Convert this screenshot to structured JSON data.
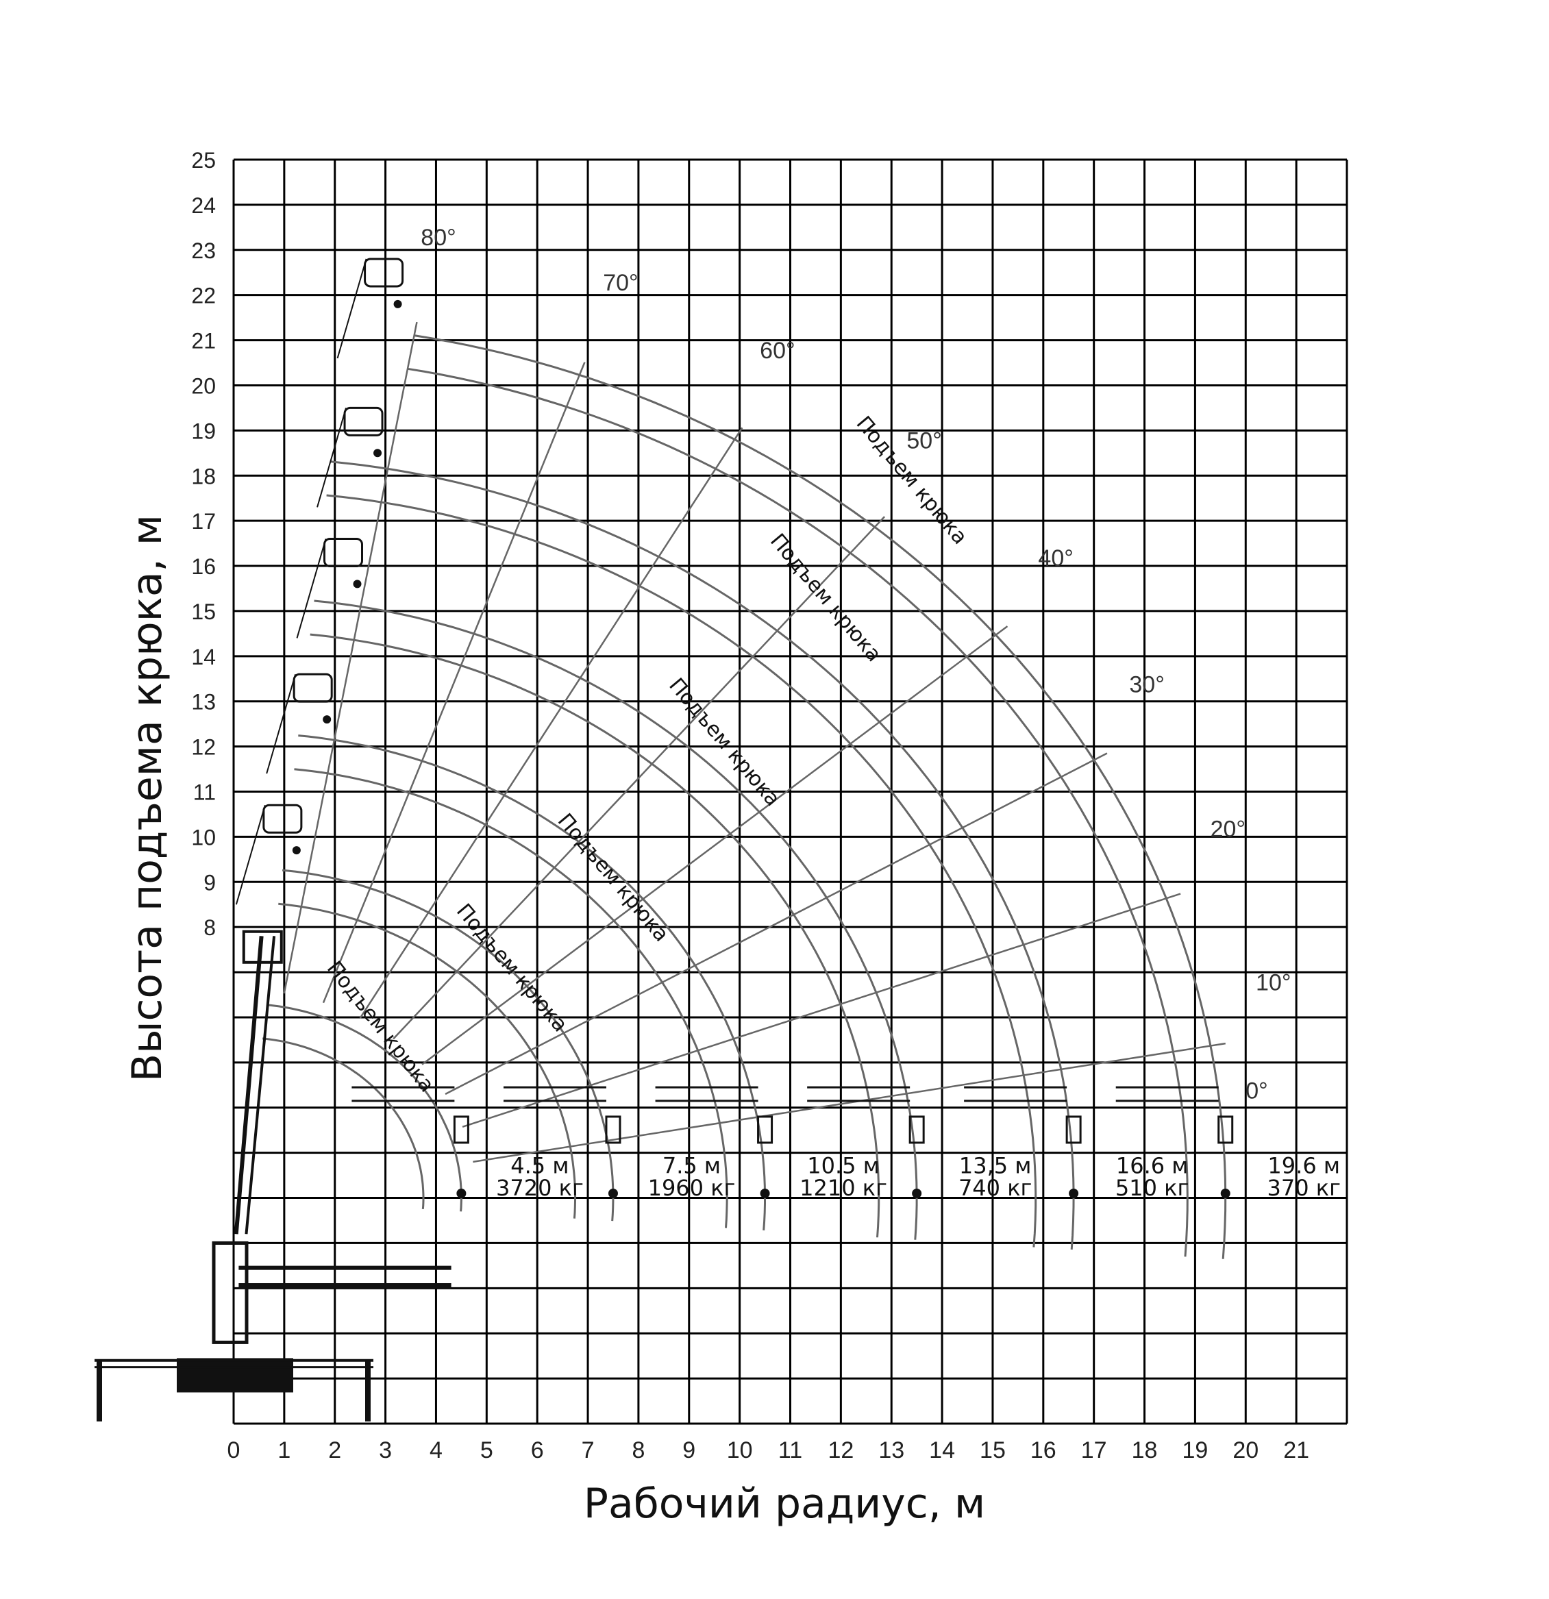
{
  "chart_data": {
    "type": "load-chart",
    "xlabel": "Рабочий радиус, м",
    "ylabel": "Высота подъема крюка, м",
    "x_ticks": [
      "0",
      "1",
      "2",
      "3",
      "4",
      "5",
      "6",
      "7",
      "8",
      "9",
      "10",
      "11",
      "12",
      "13",
      "14",
      "15",
      "16",
      "17",
      "18",
      "19",
      "20",
      "21"
    ],
    "y_ticks": [
      "8",
      "9",
      "10",
      "11",
      "12",
      "13",
      "14",
      "15",
      "16",
      "17",
      "18",
      "19",
      "20",
      "21",
      "22",
      "23",
      "24",
      "25"
    ],
    "xlim": [
      0,
      22
    ],
    "ylim": [
      -3,
      25
    ],
    "angle_labels": [
      "0°",
      "10°",
      "20°",
      "30°",
      "40°",
      "50°",
      "60°",
      "70°",
      "80°"
    ],
    "arc_label": "Подъем крюка",
    "load_points": [
      {
        "radius_label": "4.5 м",
        "load_label": "3720 кг",
        "radius": 4.5
      },
      {
        "radius_label": "7.5 м",
        "load_label": "1960 кг",
        "radius": 7.5
      },
      {
        "radius_label": "10.5 м",
        "load_label": "1210 кг",
        "radius": 10.5
      },
      {
        "radius_label": "13,5 м",
        "load_label": "740 кг",
        "radius": 13.5
      },
      {
        "radius_label": "16.6 м",
        "load_label": "510 кг",
        "radius": 16.6
      },
      {
        "radius_label": "19.6 м",
        "load_label": "370 кг",
        "radius": 19.6
      }
    ]
  },
  "colors": {
    "grid": "#000000",
    "curve": "#666666",
    "crane": "#111111",
    "background": "#ffffff"
  }
}
